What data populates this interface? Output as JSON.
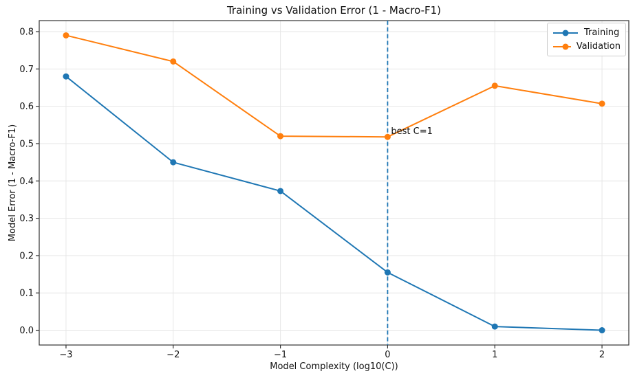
{
  "chart_data": {
    "type": "line",
    "title": "Training vs Validation Error (1 - Macro-F1)",
    "xlabel": "Model Complexity (log10(C))",
    "ylabel": "Model Error (1 - Macro-F1)",
    "x": [
      -3,
      -2,
      -1,
      0,
      1,
      2
    ],
    "series": [
      {
        "name": "Training",
        "color": "#1f77b4",
        "values": [
          0.68,
          0.45,
          0.373,
          0.155,
          0.01,
          0.0
        ]
      },
      {
        "name": "Validation",
        "color": "#ff7f0e",
        "values": [
          0.79,
          0.72,
          0.52,
          0.518,
          0.655,
          0.607
        ]
      }
    ],
    "xlim": [
      -3.25,
      2.25
    ],
    "ylim": [
      -0.0395,
      0.8295
    ],
    "xticks": {
      "values": [
        -3,
        -2,
        -1,
        0,
        1,
        2
      ],
      "labels": [
        "−3",
        "−2",
        "−1",
        "0",
        "1",
        "2"
      ]
    },
    "yticks": {
      "values": [
        0.0,
        0.1,
        0.2,
        0.3,
        0.4,
        0.5,
        0.6,
        0.7,
        0.8
      ],
      "labels": [
        "0.0",
        "0.1",
        "0.2",
        "0.3",
        "0.4",
        "0.5",
        "0.6",
        "0.7",
        "0.8"
      ]
    },
    "grid": true,
    "legend_position": "upper right",
    "legend": [
      "Training",
      "Validation"
    ],
    "vline": {
      "x": 0,
      "style": "dashed",
      "color": "#1f77b4"
    },
    "annotation": {
      "text": "best C=1",
      "x": 0,
      "y": 0.518
    }
  },
  "colors": {
    "background": "#ffffff",
    "grid": "#e6e6e6",
    "spine": "#333333",
    "text": "#111111",
    "training": "#1f77b4",
    "validation": "#ff7f0e"
  }
}
